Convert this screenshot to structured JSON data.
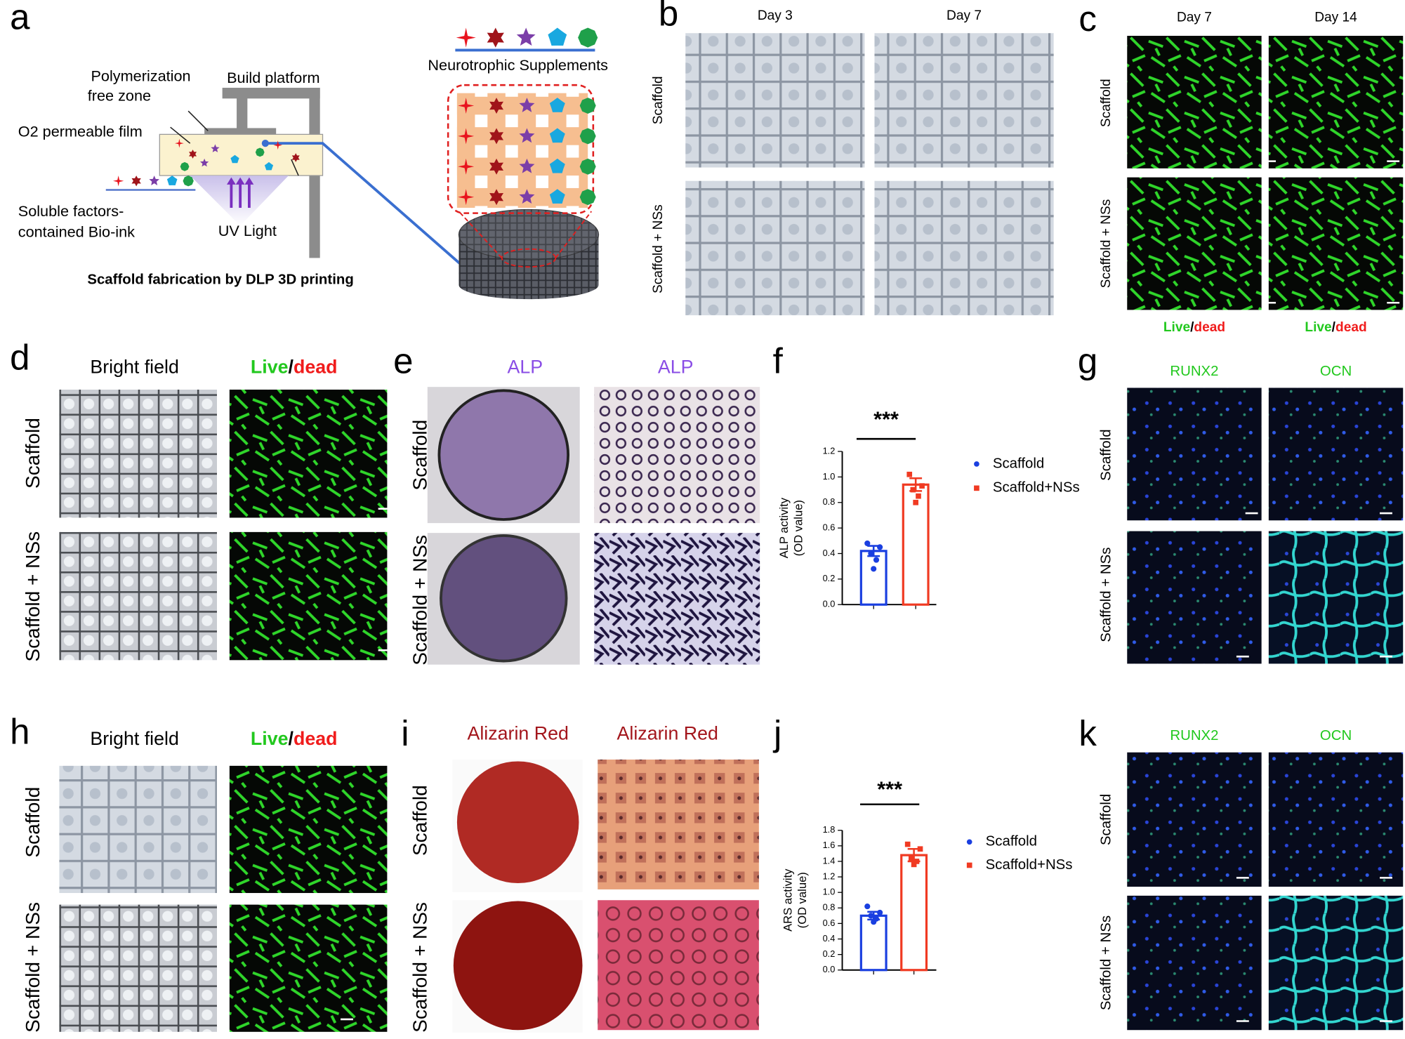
{
  "panels": {
    "a": {
      "label": "a",
      "platform": "Build platform",
      "zone": [
        "Polymerization",
        "free zone"
      ],
      "film": "O2 permeable film",
      "bioink": [
        "Soluble factors-",
        "contained Bio-ink"
      ],
      "uv": "UV Light",
      "caption": "Scaffold fabrication by DLP 3D printing",
      "supplements": "Neurotrophic Supplements"
    },
    "b": {
      "label": "b",
      "columns": [
        "Day 3",
        "Day 7"
      ],
      "rows": [
        "Scaffold",
        "Scaffold + NSs"
      ]
    },
    "c": {
      "label": "c",
      "columns": [
        "Day 7",
        "Day 14"
      ],
      "rows": [
        "Scaffold",
        "Scaffold + NSs"
      ],
      "footer": [
        [
          "Live",
          "/",
          "dead"
        ],
        [
          "Live",
          "/",
          "dead"
        ]
      ]
    },
    "d": {
      "label": "d",
      "bright": "Bright field",
      "live_dead": [
        "Live",
        "/",
        "dead"
      ],
      "rows": [
        "Scaffold",
        "Scaffold + NSs"
      ]
    },
    "e": {
      "label": "e",
      "columns": [
        "ALP",
        "ALP"
      ],
      "rows": [
        "Scaffold",
        "Scaffold + NSs"
      ]
    },
    "g": {
      "label": "g",
      "columns": [
        "RUNX2",
        "OCN"
      ],
      "rows": [
        "Scaffold",
        "Scaffold + NSs"
      ]
    },
    "h": {
      "label": "h",
      "bright": "Bright field",
      "live_dead": [
        "Live",
        "/",
        "dead"
      ],
      "rows": [
        "Scaffold",
        "Scaffold + NSs"
      ]
    },
    "i": {
      "label": "i",
      "columns": [
        "Alizarin Red",
        "Alizarin Red"
      ],
      "rows": [
        "Scaffold",
        "Scaffold + NSs"
      ]
    },
    "k": {
      "label": "k",
      "columns": [
        "RUNX2",
        "OCN"
      ],
      "rows": [
        "Scaffold",
        "Scaffold + NSs"
      ]
    }
  },
  "chart_data": [
    {
      "type": "bar",
      "panel_label": "f",
      "annotation": "***",
      "ylabel": [
        "ALP activity",
        "(OD value)"
      ],
      "ylim": [
        0,
        1.2
      ],
      "yticks": [
        {
          "value": 0,
          "label": "0.0"
        },
        0.2,
        0.4,
        0.6,
        0.8,
        {
          "value": 1,
          "label": "1.0"
        },
        1.2
      ],
      "series": [
        {
          "name": "Scaffold",
          "color": "#1a3fe0",
          "values": [
            0.42
          ],
          "errors": [
            0.04
          ],
          "points": [
            0.48,
            0.45,
            0.4,
            0.35,
            0.28
          ]
        },
        {
          "name": "Scaffold+NSs",
          "color": "#f03a22",
          "values": [
            0.94
          ],
          "errors": [
            0.05
          ],
          "points": [
            1.02,
            0.93,
            0.9,
            0.85,
            0.8
          ]
        }
      ]
    },
    {
      "type": "bar",
      "panel_label": "j",
      "annotation": "***",
      "ylabel": [
        "ARS activity",
        "(OD value)"
      ],
      "ylim": [
        0,
        1.8
      ],
      "yticks": [
        {
          "value": 0,
          "label": "0.0"
        },
        0.2,
        0.4,
        0.6,
        0.8,
        {
          "value": 1,
          "label": "1.0"
        },
        1.2,
        1.4,
        1.6,
        1.8
      ],
      "series": [
        {
          "name": "Scaffold",
          "color": "#1a3fe0",
          "values": [
            0.7
          ],
          "errors": [
            0.05
          ],
          "points": [
            0.82,
            0.74,
            0.7,
            0.66,
            0.62
          ]
        },
        {
          "name": "Scaffold+NSs",
          "color": "#f03a22",
          "values": [
            1.48
          ],
          "errors": [
            0.08
          ],
          "points": [
            1.62,
            1.56,
            1.44,
            1.4,
            1.36
          ]
        }
      ]
    }
  ]
}
